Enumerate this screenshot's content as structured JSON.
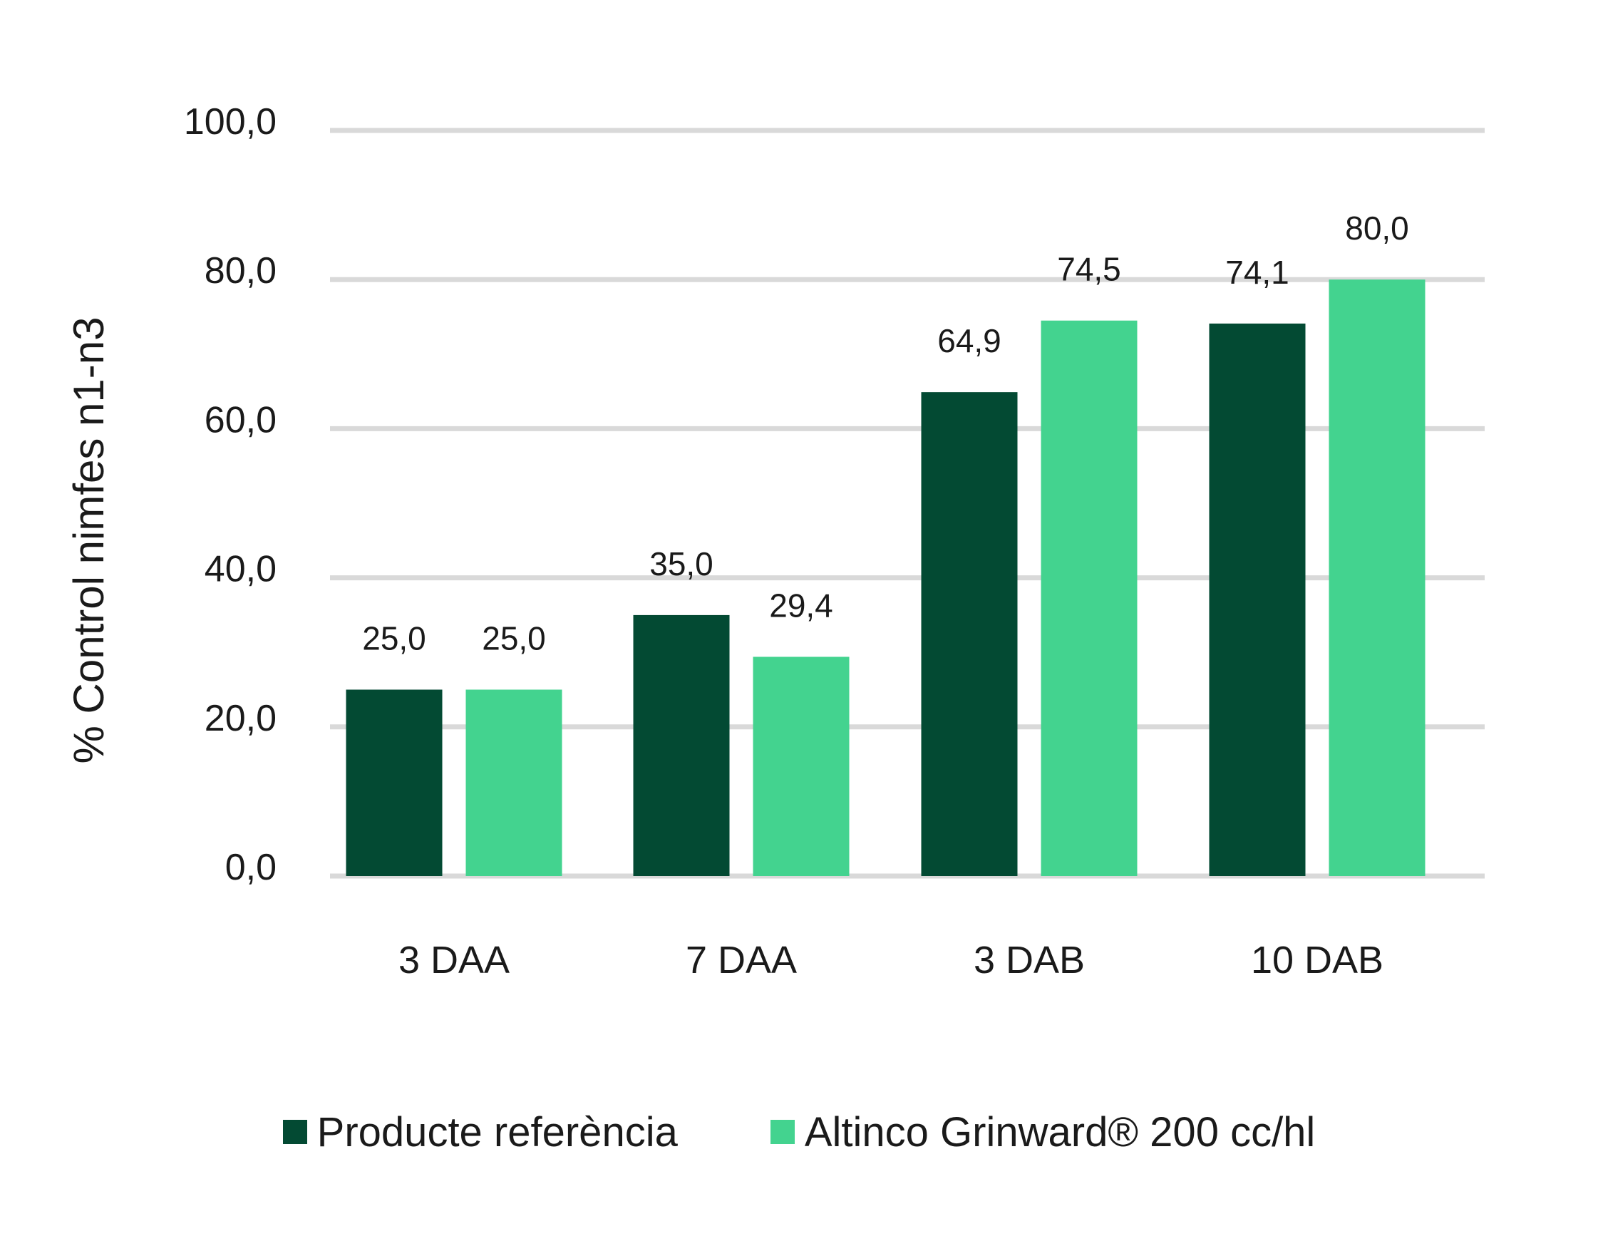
{
  "chart_data": {
    "type": "bar",
    "title": "",
    "xlabel": "",
    "ylabel": "% Control nimfes n1-n3",
    "ylim": [
      0,
      100
    ],
    "yticks": [
      "0,0",
      "20,0",
      "40,0",
      "60,0",
      "80,0",
      "100,0"
    ],
    "categories": [
      "3 DAA",
      "7 DAA",
      "3 DAB",
      "10 DAB"
    ],
    "series": [
      {
        "name": "Producte referència",
        "color": "#034a33",
        "values": [
          25.0,
          35.0,
          64.9,
          74.1
        ],
        "labels": [
          "25,0",
          "35,0",
          "64,9",
          "74,1"
        ]
      },
      {
        "name": "Altinco Grinward® 200 cc/hl",
        "color": "#43d38f",
        "values": [
          25.0,
          29.4,
          74.5,
          80.0
        ],
        "labels": [
          "25,0",
          "29,4",
          "74,5",
          "80,0"
        ]
      }
    ],
    "grid": true,
    "legend_position": "bottom",
    "gridline_color": "#d9d9d9"
  }
}
